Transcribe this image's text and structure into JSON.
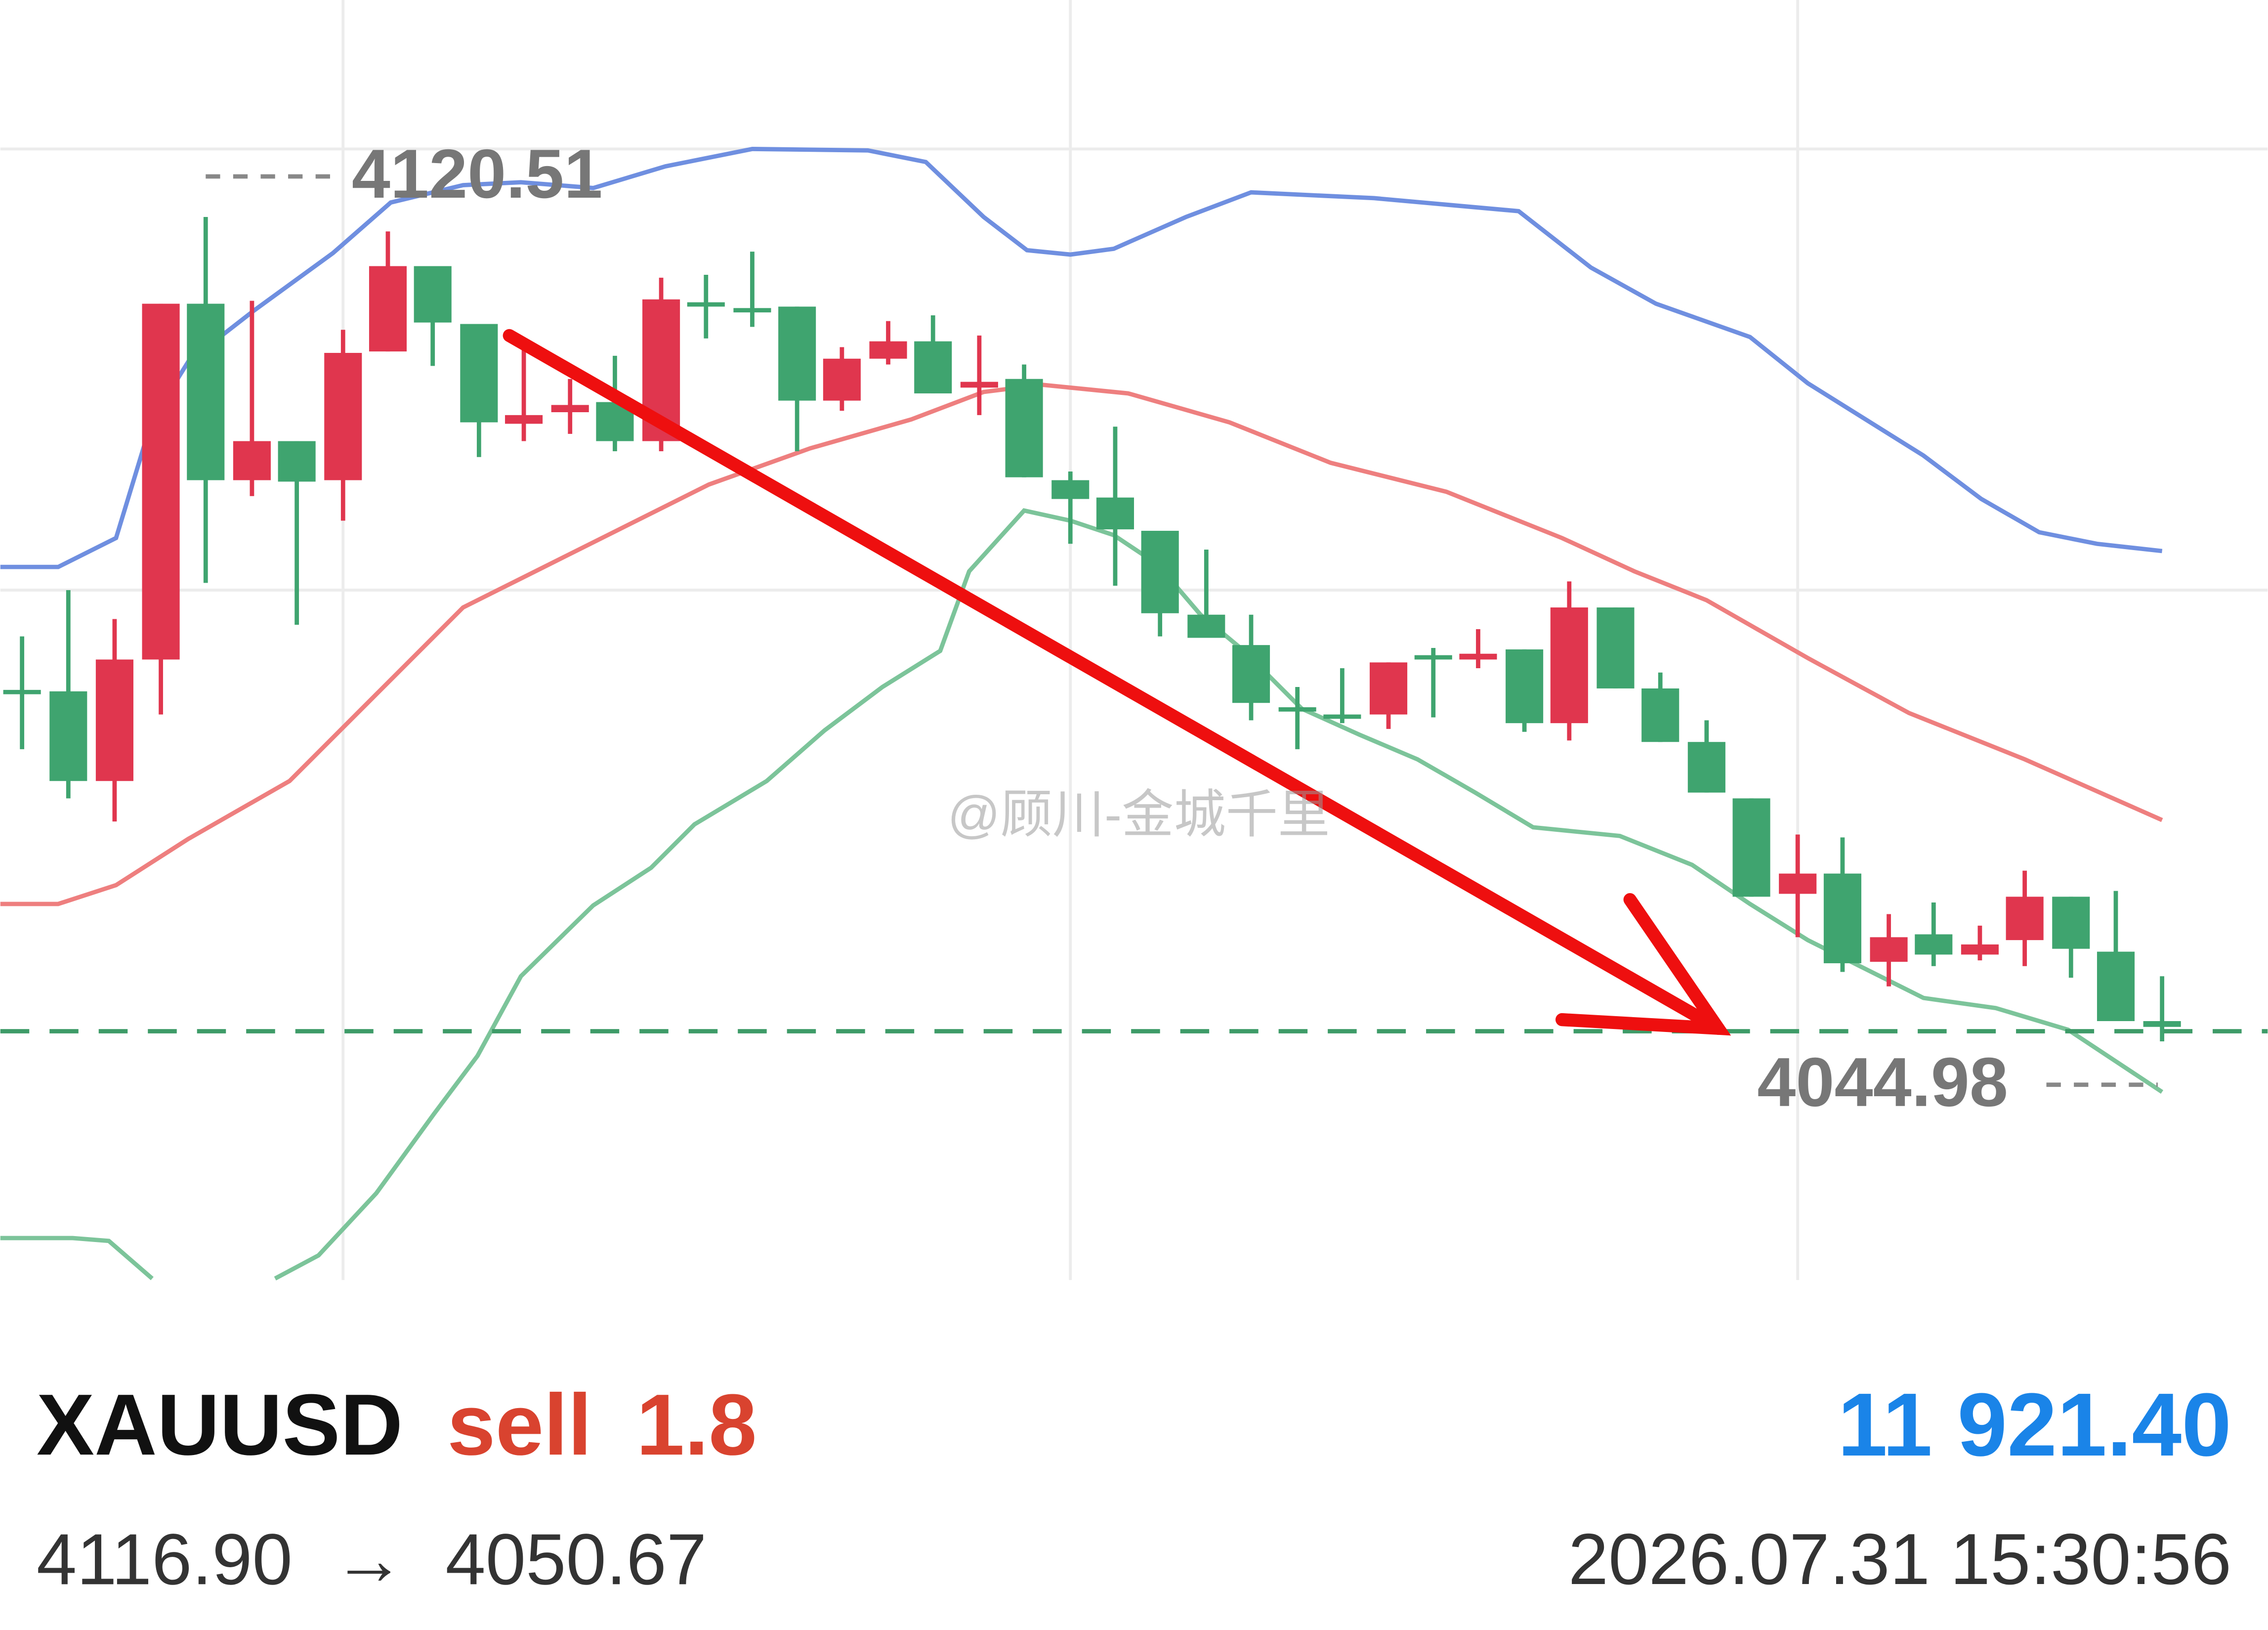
{
  "chart": {
    "high_label": "4120.51",
    "low_label": "4044.98",
    "watermark": "@顾川-金城千里"
  },
  "footer": {
    "symbol": "XAUUSD",
    "side": "sell",
    "volume": "1.8",
    "profit": "11 921.40",
    "open_price": "4116.90",
    "arrow": "→",
    "close_price": "4050.67",
    "datetime": "2026.07.31 15:30:56"
  }
}
